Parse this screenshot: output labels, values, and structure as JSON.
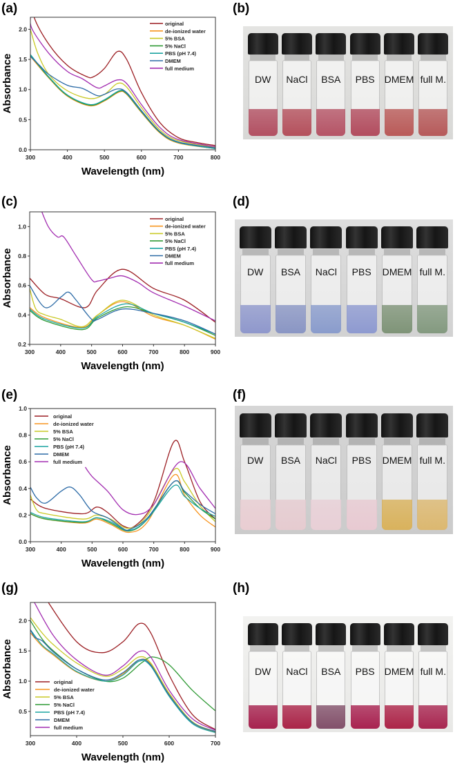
{
  "panels": {
    "a": "(a)",
    "b": "(b)",
    "c": "(c)",
    "d": "(d)",
    "e": "(e)",
    "f": "(f)",
    "g": "(g)",
    "h": "(h)"
  },
  "series_colors": {
    "original": "#9b1d22",
    "de-ionized water": "#f7941d",
    "5% BSA": "#c9c925",
    "5% NaCl": "#2f9a35",
    "PBS (pH 7.4)": "#1aa3a0",
    "DMEM": "#2b6aa6",
    "full medium": "#a22cb0"
  },
  "chart_data": [
    {
      "type": "line",
      "panel": "(a)",
      "xlabel": "Wavelength (nm)",
      "ylabel": "Absorbance",
      "xlim": [
        300,
        800
      ],
      "ylim": [
        0,
        2.2
      ],
      "xticks": [
        300,
        400,
        500,
        600,
        700,
        800
      ],
      "yticks": [
        "0.0",
        "0.5",
        "1.0",
        "1.5",
        "2.0"
      ],
      "legend": "top-right",
      "grid": false,
      "series": [
        {
          "name": "original",
          "x": [
            300,
            310,
            350,
            400,
            450,
            470,
            500,
            535,
            560,
            600,
            650,
            700,
            750,
            800
          ],
          "y": [
            2.6,
            2.2,
            1.75,
            1.4,
            1.22,
            1.21,
            1.35,
            1.63,
            1.5,
            0.95,
            0.45,
            0.2,
            0.12,
            0.07
          ]
        },
        {
          "name": "de-ionized water",
          "x": [
            300,
            350,
            400,
            460,
            500,
            540,
            560,
            600,
            650,
            700,
            800
          ],
          "y": [
            1.55,
            1.19,
            0.89,
            0.73,
            0.81,
            0.96,
            0.92,
            0.62,
            0.28,
            0.11,
            0.02
          ]
        },
        {
          "name": "5% BSA",
          "x": [
            300,
            320,
            350,
            400,
            460,
            500,
            535,
            560,
            600,
            650,
            700,
            800
          ],
          "y": [
            2.0,
            1.6,
            1.25,
            0.98,
            0.85,
            0.92,
            1.1,
            1.04,
            0.7,
            0.33,
            0.15,
            0.04
          ]
        },
        {
          "name": "5% NaCl",
          "x": [
            300,
            350,
            400,
            460,
            500,
            540,
            560,
            600,
            650,
            700,
            800
          ],
          "y": [
            1.57,
            1.2,
            0.9,
            0.74,
            0.82,
            0.97,
            0.93,
            0.63,
            0.29,
            0.12,
            0.02
          ]
        },
        {
          "name": "PBS (pH 7.4)",
          "x": [
            300,
            350,
            400,
            460,
            500,
            540,
            560,
            600,
            650,
            700,
            800
          ],
          "y": [
            1.58,
            1.21,
            0.91,
            0.75,
            0.83,
            0.98,
            0.94,
            0.64,
            0.3,
            0.12,
            0.02
          ]
        },
        {
          "name": "DMEM",
          "x": [
            300,
            325,
            350,
            400,
            440,
            480,
            500,
            535,
            560,
            600,
            650,
            700,
            800
          ],
          "y": [
            1.55,
            1.4,
            1.25,
            1.07,
            1.02,
            0.9,
            0.92,
            1.01,
            0.95,
            0.65,
            0.3,
            0.13,
            0.03
          ]
        },
        {
          "name": "full medium",
          "x": [
            300,
            305,
            350,
            400,
            440,
            480,
            500,
            535,
            560,
            600,
            650,
            700,
            800
          ],
          "y": [
            2.2,
            2.0,
            1.6,
            1.3,
            1.18,
            1.03,
            1.06,
            1.16,
            1.1,
            0.75,
            0.37,
            0.17,
            0.05
          ]
        }
      ]
    },
    {
      "type": "line",
      "panel": "(c)",
      "xlabel": "Wavelength (nm)",
      "ylabel": "Absorbance",
      "xlim": [
        300,
        900
      ],
      "ylim": [
        0.2,
        1.1
      ],
      "xticks": [
        300,
        400,
        500,
        600,
        700,
        800,
        900
      ],
      "yticks": [
        "0.2",
        "0.4",
        "0.6",
        "0.8",
        "1.0"
      ],
      "legend": "top-right",
      "grid": false,
      "series": [
        {
          "name": "original",
          "x": [
            300,
            350,
            400,
            480,
            520,
            600,
            700,
            800,
            900
          ],
          "y": [
            0.65,
            0.54,
            0.51,
            0.45,
            0.57,
            0.71,
            0.58,
            0.5,
            0.35
          ]
        },
        {
          "name": "de-ionized water",
          "x": [
            300,
            350,
            470,
            520,
            600,
            700,
            800,
            900
          ],
          "y": [
            0.45,
            0.38,
            0.315,
            0.4,
            0.49,
            0.39,
            0.33,
            0.235
          ]
        },
        {
          "name": "5% BSA",
          "x": [
            300,
            320,
            350,
            400,
            470,
            520,
            600,
            700,
            800,
            900
          ],
          "y": [
            0.58,
            0.44,
            0.4,
            0.37,
            0.32,
            0.4,
            0.5,
            0.4,
            0.33,
            0.24
          ]
        },
        {
          "name": "5% NaCl",
          "x": [
            300,
            350,
            470,
            520,
            610,
            700,
            800,
            900
          ],
          "y": [
            0.43,
            0.36,
            0.3,
            0.38,
            0.455,
            0.41,
            0.35,
            0.26
          ]
        },
        {
          "name": "PBS (pH 7.4)",
          "x": [
            300,
            350,
            470,
            520,
            610,
            700,
            800,
            900
          ],
          "y": [
            0.44,
            0.37,
            0.31,
            0.39,
            0.475,
            0.41,
            0.35,
            0.27
          ]
        },
        {
          "name": "DMEM",
          "x": [
            300,
            350,
            400,
            425,
            450,
            500,
            520,
            600,
            700,
            800,
            900
          ],
          "y": [
            0.6,
            0.45,
            0.52,
            0.555,
            0.5,
            0.37,
            0.37,
            0.44,
            0.41,
            0.36,
            0.27
          ]
        },
        {
          "name": "full medium",
          "x": [
            330,
            360,
            390,
            410,
            450,
            500,
            520,
            560,
            600,
            650,
            700,
            800,
            900
          ],
          "y": [
            1.15,
            1.0,
            0.93,
            0.93,
            0.8,
            0.64,
            0.63,
            0.65,
            0.665,
            0.62,
            0.55,
            0.46,
            0.36
          ]
        }
      ]
    },
    {
      "type": "line",
      "panel": "(e)",
      "xlabel": "Wavelength (nm)",
      "ylabel": "Absorbance",
      "xlim": [
        300,
        900
      ],
      "ylim": [
        0,
        1.0
      ],
      "xticks": [
        300,
        400,
        500,
        600,
        700,
        800,
        900
      ],
      "yticks": [
        "0.0",
        "0.2",
        "0.4",
        "0.6",
        "0.8",
        "1.0"
      ],
      "legend": "top-left",
      "grid": false,
      "series": [
        {
          "name": "original",
          "x": [
            300,
            350,
            470,
            515,
            550,
            600,
            640,
            700,
            765,
            800,
            850,
            900
          ],
          "y": [
            0.32,
            0.25,
            0.21,
            0.26,
            0.22,
            0.12,
            0.12,
            0.3,
            0.75,
            0.6,
            0.3,
            0.17
          ]
        },
        {
          "name": "de-ionized water",
          "x": [
            300,
            350,
            470,
            515,
            560,
            620,
            680,
            765,
            800,
            850,
            900
          ],
          "y": [
            0.21,
            0.17,
            0.14,
            0.17,
            0.13,
            0.07,
            0.15,
            0.5,
            0.35,
            0.2,
            0.11
          ]
        },
        {
          "name": "5% BSA",
          "x": [
            300,
            320,
            350,
            470,
            515,
            560,
            620,
            680,
            765,
            800,
            850,
            900
          ],
          "y": [
            0.35,
            0.24,
            0.21,
            0.17,
            0.2,
            0.17,
            0.1,
            0.2,
            0.54,
            0.45,
            0.27,
            0.15
          ]
        },
        {
          "name": "5% NaCl",
          "x": [
            300,
            350,
            470,
            515,
            560,
            620,
            680,
            765,
            800,
            850,
            900
          ],
          "y": [
            0.21,
            0.17,
            0.145,
            0.18,
            0.14,
            0.08,
            0.17,
            0.45,
            0.37,
            0.25,
            0.17
          ]
        },
        {
          "name": "PBS (pH 7.4)",
          "x": [
            300,
            350,
            470,
            515,
            560,
            620,
            680,
            765,
            800,
            850,
            900
          ],
          "y": [
            0.22,
            0.18,
            0.15,
            0.18,
            0.15,
            0.085,
            0.17,
            0.42,
            0.34,
            0.25,
            0.19
          ]
        },
        {
          "name": "DMEM",
          "x": [
            300,
            320,
            350,
            400,
            430,
            460,
            500,
            550,
            600,
            620,
            680,
            765,
            800,
            850,
            900
          ],
          "y": [
            0.41,
            0.33,
            0.29,
            0.38,
            0.41,
            0.35,
            0.23,
            0.18,
            0.1,
            0.09,
            0.18,
            0.45,
            0.38,
            0.28,
            0.21
          ]
        },
        {
          "name": "full medium",
          "x": [
            478,
            500,
            550,
            600,
            650,
            700,
            785,
            850,
            900
          ],
          "y": [
            0.56,
            0.49,
            0.38,
            0.24,
            0.205,
            0.28,
            0.6,
            0.4,
            0.25
          ]
        }
      ]
    },
    {
      "type": "line",
      "panel": "(g)",
      "xlabel": "Wavelength (nm)",
      "ylabel": "Absorbance",
      "xlim": [
        300,
        700
      ],
      "ylim": [
        0.1,
        2.3
      ],
      "xticks": [
        300,
        400,
        500,
        600,
        700
      ],
      "yticks": [
        "0.5",
        "1.0",
        "1.5",
        "2.0"
      ],
      "legend": "bottom-left",
      "grid": false,
      "series": [
        {
          "name": "original",
          "x": [
            330,
            400,
            455,
            500,
            535,
            560,
            600,
            650,
            700
          ],
          "y": [
            2.4,
            1.65,
            1.47,
            1.65,
            1.95,
            1.8,
            1.1,
            0.45,
            0.2
          ]
        },
        {
          "name": "de-ionized water",
          "x": [
            300,
            325,
            350,
            400,
            460,
            500,
            535,
            560,
            600,
            650,
            700
          ],
          "y": [
            1.8,
            1.58,
            1.43,
            1.15,
            1.0,
            1.12,
            1.35,
            1.28,
            0.78,
            0.32,
            0.16
          ]
        },
        {
          "name": "5% BSA",
          "x": [
            300,
            325,
            350,
            400,
            460,
            500,
            535,
            560,
            600,
            650,
            700
          ],
          "y": [
            2.05,
            1.8,
            1.6,
            1.3,
            1.08,
            1.2,
            1.4,
            1.3,
            0.8,
            0.33,
            0.17
          ]
        },
        {
          "name": "5% NaCl",
          "x": [
            300,
            325,
            350,
            400,
            460,
            500,
            540,
            565,
            600,
            650,
            700
          ],
          "y": [
            2.0,
            1.7,
            1.5,
            1.2,
            1.0,
            1.05,
            1.3,
            1.4,
            1.27,
            0.85,
            0.51
          ]
        },
        {
          "name": "PBS (pH 7.4)",
          "x": [
            300,
            325,
            350,
            400,
            460,
            500,
            535,
            560,
            600,
            650,
            700
          ],
          "y": [
            1.85,
            1.6,
            1.45,
            1.16,
            1.0,
            1.1,
            1.33,
            1.25,
            0.75,
            0.3,
            0.15
          ]
        },
        {
          "name": "DMEM",
          "x": [
            300,
            310,
            325,
            350,
            400,
            460,
            500,
            535,
            560,
            600,
            650,
            700
          ],
          "y": [
            1.85,
            1.72,
            1.67,
            1.48,
            1.2,
            1.02,
            1.14,
            1.35,
            1.27,
            0.77,
            0.32,
            0.17
          ]
        },
        {
          "name": "full medium",
          "x": [
            305,
            350,
            400,
            460,
            500,
            535,
            560,
            600,
            650,
            700
          ],
          "y": [
            2.35,
            1.75,
            1.35,
            1.1,
            1.25,
            1.49,
            1.4,
            0.85,
            0.38,
            0.19
          ]
        }
      ]
    }
  ],
  "photos": [
    {
      "panel": "(b)",
      "vials": [
        {
          "label": "DW",
          "liquid": "#b25062"
        },
        {
          "label": "NaCl",
          "liquid": "#b4505c"
        },
        {
          "label": "BSA",
          "liquid": "#b55466"
        },
        {
          "label": "PBS",
          "liquid": "#b24c5e"
        },
        {
          "label": "DMEM",
          "liquid": "#b95a58"
        },
        {
          "label": "full M.",
          "liquid": "#b65a5a"
        }
      ]
    },
    {
      "panel": "(d)",
      "vials": [
        {
          "label": "DW",
          "liquid": "#8f98cc"
        },
        {
          "label": "BSA",
          "liquid": "#8a96c4"
        },
        {
          "label": "NaCl",
          "liquid": "#8a9ccc"
        },
        {
          "label": "PBS",
          "liquid": "#8e9ad0"
        },
        {
          "label": "DMEM",
          "liquid": "#7f9478"
        },
        {
          "label": "full M.",
          "liquid": "#849a80"
        }
      ]
    },
    {
      "panel": "(f)",
      "vials": [
        {
          "label": "DW",
          "liquid": "#e9cdd2"
        },
        {
          "label": "BSA",
          "liquid": "#e6cbd0"
        },
        {
          "label": "NaCl",
          "liquid": "#e8cfd6"
        },
        {
          "label": "PBS",
          "liquid": "#e8cad2"
        },
        {
          "label": "DMEM",
          "liquid": "#d9b25c"
        },
        {
          "label": "full M.",
          "liquid": "#dcb870"
        }
      ]
    },
    {
      "panel": "(h)",
      "vials": [
        {
          "label": "DW",
          "liquid": "#a6224e"
        },
        {
          "label": "NaCl",
          "liquid": "#aa2448"
        },
        {
          "label": "BSA",
          "liquid": "#82506a"
        },
        {
          "label": "PBS",
          "liquid": "#a82250"
        },
        {
          "label": "DMEM",
          "liquid": "#ac2448"
        },
        {
          "label": "full M.",
          "liquid": "#a82650"
        }
      ]
    }
  ]
}
